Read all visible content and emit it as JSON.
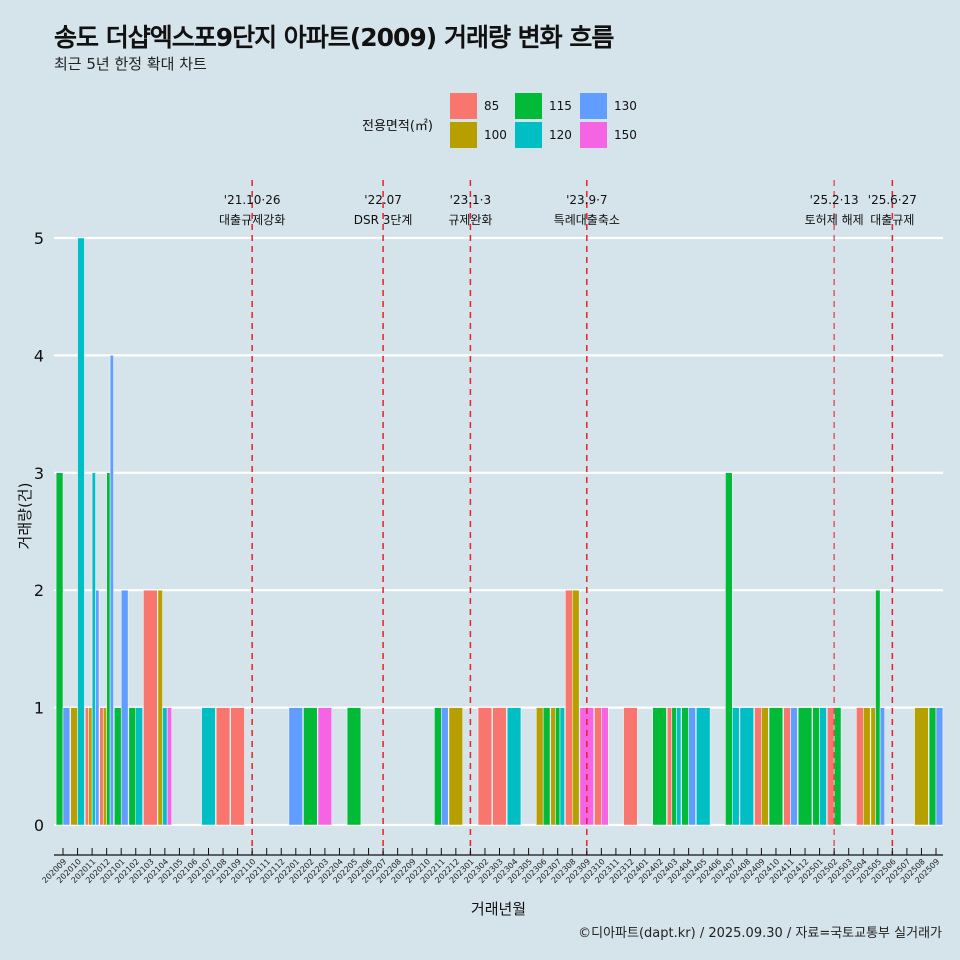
{
  "title": "송도 더샵엑스포9단지 아파트(2009) 거래량 변화 흐름",
  "subtitle": "최근 5년 한정 확대 차트",
  "footer": "©디아파트(dapt.kr) / 2025.09.30 / 자료=국토교통부 실거래가",
  "legend": {
    "title": "전용면적(㎡)",
    "items": [
      {
        "label": "85",
        "color": "#F8766D"
      },
      {
        "label": "100",
        "color": "#B79F00"
      },
      {
        "label": "115",
        "color": "#00BA38"
      },
      {
        "label": "120",
        "color": "#00BFC4"
      },
      {
        "label": "130",
        "color": "#619CFF"
      },
      {
        "label": "150",
        "color": "#F564E3"
      }
    ]
  },
  "chart_data": {
    "type": "bar",
    "title": "송도 더샵엑스포9단지 아파트(2009) 거래량 변화 흐름",
    "subtitle": "최근 5년 한정 확대 차트",
    "xlabel": "거래년월",
    "ylabel": "거래량(건)",
    "ylim": [
      0,
      5
    ],
    "yticks": [
      0,
      1,
      2,
      3,
      4,
      5
    ],
    "grid": true,
    "legend_position": "top",
    "categories": [
      "202009",
      "202010",
      "202011",
      "202012",
      "202101",
      "202102",
      "202103",
      "202104",
      "202105",
      "202106",
      "202107",
      "202108",
      "202109",
      "202110",
      "202111",
      "202112",
      "202201",
      "202202",
      "202203",
      "202204",
      "202205",
      "202206",
      "202207",
      "202208",
      "202209",
      "202210",
      "202211",
      "202212",
      "202301",
      "202302",
      "202303",
      "202304",
      "202305",
      "202306",
      "202307",
      "202308",
      "202309",
      "202310",
      "202311",
      "202312",
      "202401",
      "202402",
      "202403",
      "202404",
      "202405",
      "202406",
      "202407",
      "202408",
      "202409",
      "202410",
      "202411",
      "202412",
      "202501",
      "202502",
      "202503",
      "202504",
      "202505",
      "202506",
      "202507",
      "202508",
      "202509"
    ],
    "series_order": [
      "85",
      "100",
      "115",
      "120",
      "130",
      "150"
    ],
    "bars": [
      {
        "month": "202009",
        "values": {
          "115": 3,
          "130": 1
        }
      },
      {
        "month": "202010",
        "values": {
          "100": 1,
          "120": 5
        }
      },
      {
        "month": "202011",
        "values": {
          "85": 1,
          "100": 1,
          "120": 3,
          "130": 2
        }
      },
      {
        "month": "202012",
        "values": {
          "85": 1,
          "100": 1,
          "115": 3,
          "130": 4
        }
      },
      {
        "month": "202101",
        "values": {
          "115": 1,
          "130": 2
        }
      },
      {
        "month": "202102",
        "values": {
          "115": 1,
          "120": 1
        }
      },
      {
        "month": "202103",
        "values": {
          "85": 2
        }
      },
      {
        "month": "202104",
        "values": {
          "100": 2,
          "120": 1,
          "150": 1
        }
      },
      {
        "month": "202107",
        "values": {
          "120": 1
        }
      },
      {
        "month": "202108",
        "values": {
          "85": 1
        }
      },
      {
        "month": "202109",
        "values": {
          "85": 1
        }
      },
      {
        "month": "202201",
        "values": {
          "130": 1
        }
      },
      {
        "month": "202202",
        "values": {
          "115": 1
        }
      },
      {
        "month": "202203",
        "values": {
          "150": 1
        }
      },
      {
        "month": "202205",
        "values": {
          "115": 1
        }
      },
      {
        "month": "202211",
        "values": {
          "115": 1,
          "130": 1
        }
      },
      {
        "month": "202212",
        "values": {
          "100": 1
        }
      },
      {
        "month": "202302",
        "values": {
          "85": 1
        }
      },
      {
        "month": "202303",
        "values": {
          "85": 1
        }
      },
      {
        "month": "202304",
        "values": {
          "120": 1
        }
      },
      {
        "month": "202306",
        "values": {
          "100": 1,
          "115": 1
        }
      },
      {
        "month": "202307",
        "values": {
          "100": 1,
          "115": 1,
          "120": 1
        }
      },
      {
        "month": "202308",
        "values": {
          "85": 2,
          "100": 2
        }
      },
      {
        "month": "202309",
        "values": {
          "150": 1
        }
      },
      {
        "month": "202310",
        "values": {
          "85": 1,
          "150": 1
        }
      },
      {
        "month": "202312",
        "values": {
          "85": 1
        }
      },
      {
        "month": "202402",
        "values": {
          "115": 1
        }
      },
      {
        "month": "202403",
        "values": {
          "85": 1,
          "115": 1,
          "120": 1
        }
      },
      {
        "month": "202404",
        "values": {
          "115": 1,
          "130": 1
        }
      },
      {
        "month": "202405",
        "values": {
          "120": 1
        }
      },
      {
        "month": "202407",
        "values": {
          "115": 3,
          "120": 1
        }
      },
      {
        "month": "202408",
        "values": {
          "120": 1
        }
      },
      {
        "month": "202409",
        "values": {
          "85": 1,
          "100": 1
        }
      },
      {
        "month": "202410",
        "values": {
          "115": 1
        }
      },
      {
        "month": "202411",
        "values": {
          "85": 1,
          "130": 1
        }
      },
      {
        "month": "202412",
        "values": {
          "115": 1
        }
      },
      {
        "month": "202501",
        "values": {
          "115": 1,
          "120": 1
        }
      },
      {
        "month": "202502",
        "values": {
          "85": 1,
          "115": 1
        }
      },
      {
        "month": "202504",
        "values": {
          "85": 1,
          "100": 1
        }
      },
      {
        "month": "202505",
        "values": {
          "100": 1,
          "115": 2,
          "130": 1
        }
      },
      {
        "month": "202508",
        "values": {
          "100": 1
        }
      },
      {
        "month": "202509",
        "values": {
          "115": 1,
          "130": 1
        }
      }
    ],
    "events": [
      {
        "month": "202110",
        "offset": 0.8,
        "date": "'21.10·26",
        "label": "대출규제강화"
      },
      {
        "month": "202207",
        "offset": 0,
        "date": "'22.07",
        "label": "DSR 3단계"
      },
      {
        "month": "202301",
        "offset": 0,
        "date": "'23.1·3",
        "label": "규제완화"
      },
      {
        "month": "202309",
        "offset": 0.2,
        "date": "'23.9·7",
        "label": "특례대출축소"
      },
      {
        "month": "202502",
        "offset": 0.4,
        "date": "'25.2·13",
        "label": "토허제 해제"
      },
      {
        "month": "202506",
        "offset": 0.85,
        "date": "'25.6·27",
        "label": "대출규제"
      }
    ]
  }
}
